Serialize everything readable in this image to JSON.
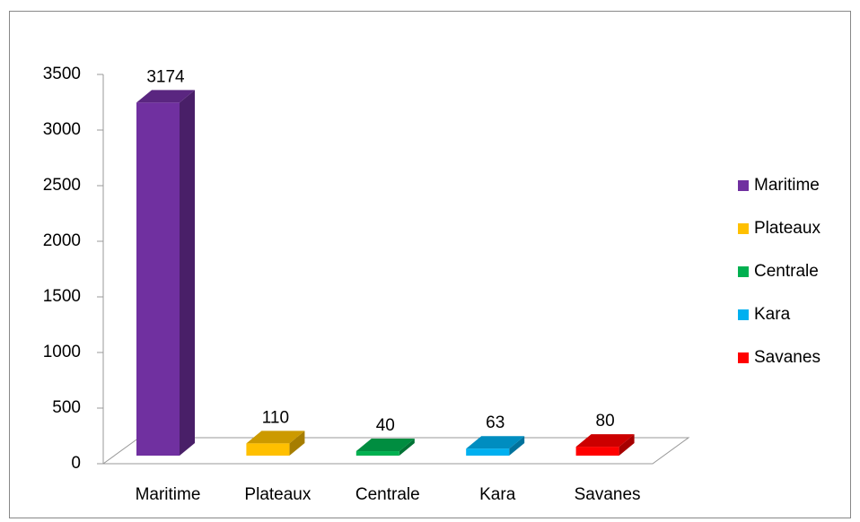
{
  "chart_data": {
    "type": "bar3d",
    "categories": [
      "Maritime",
      "Plateaux",
      "Centrale",
      "Kara",
      "Savanes"
    ],
    "values": [
      3174,
      110,
      40,
      63,
      80
    ],
    "colors": [
      "#7030a0",
      "#ffc000",
      "#00b050",
      "#00b0f0",
      "#ff0000"
    ],
    "ylim": [
      0,
      3500
    ],
    "yticks": [
      0,
      500,
      1000,
      1500,
      2000,
      2500,
      3000,
      3500
    ],
    "legend": "right"
  }
}
